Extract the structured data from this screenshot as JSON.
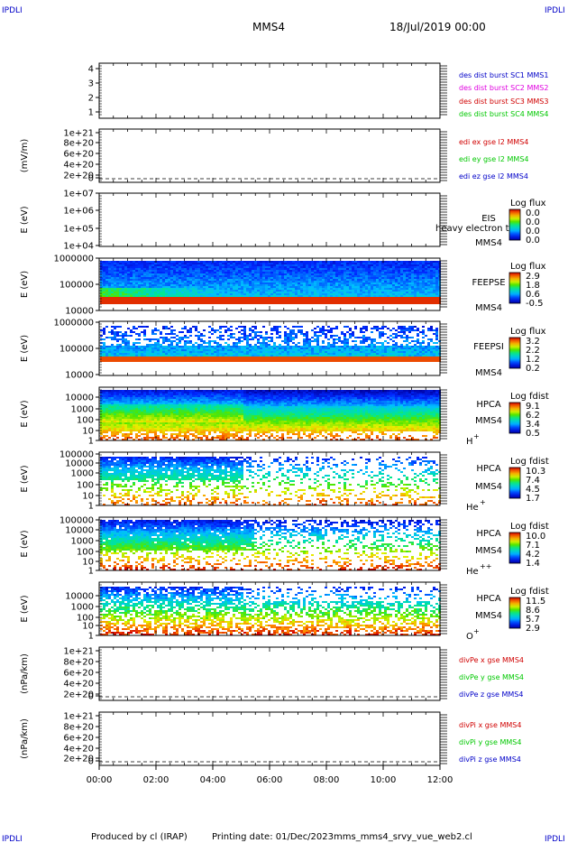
{
  "header": {
    "corner_label": "IPDLI",
    "spacecraft": "MMS4",
    "datetime": "18/Jul/2019 00:00"
  },
  "footer": {
    "produced_by": "Produced by cl (IRAP)",
    "printing_date": "Printing date: 01/Dec/2023",
    "script_name": "mms_mms4_srvy_vue_web2.cl"
  },
  "colors": {
    "blue": "#0000c8",
    "magenta": "#e000e0",
    "red": "#d00000",
    "green": "#00c800"
  },
  "chart_data": {
    "type": "heatmap",
    "x_ticks": [
      "00:00",
      "02:00",
      "04:00",
      "06:00",
      "08:00",
      "10:00",
      "12:00"
    ],
    "panels": [
      {
        "id": "des-dist",
        "kind": "line",
        "y_ticks": [
          "4",
          "3",
          "2",
          "1"
        ],
        "ylabel": "",
        "legend": [
          {
            "label": "des dist burst SC1 MMS1",
            "color": "#0000c8"
          },
          {
            "label": "des dist burst SC2 MMS2",
            "color": "#e000e0"
          },
          {
            "label": "des dist burst SC3 MMS3",
            "color": "#d00000"
          },
          {
            "label": "des dist burst SC4 MMS4",
            "color": "#00c800"
          }
        ]
      },
      {
        "id": "edi-e",
        "kind": "line",
        "y_ticks": [
          "1e+21",
          "8e+20",
          "6e+20",
          "4e+20",
          "2e+20",
          "0"
        ],
        "ylabel": "(mV/m)",
        "zero_line": true,
        "legend": [
          {
            "label": "edi ex gse l2 MMS4",
            "color": "#d00000"
          },
          {
            "label": "edi ey gse l2 MMS4",
            "color": "#00c800"
          },
          {
            "label": "edi ez gse l2 MMS4",
            "color": "#0000c8"
          }
        ]
      },
      {
        "id": "eis",
        "kind": "empty-spectrogram",
        "y_ticks": [
          "1e+07",
          "1e+06",
          "1e+05",
          "1e+04"
        ],
        "ylabel": "E (eV)",
        "instrument": "EIS",
        "sublabel": "heavy electron to",
        "sc": "MMS4",
        "colorbar": {
          "title": "Log flux",
          "ticks": [
            "0.0",
            "0.0",
            "0.0",
            "0.0"
          ]
        }
      },
      {
        "id": "feepse",
        "kind": "spectrogram",
        "y_ticks": [
          "1000000",
          "100000",
          "10000"
        ],
        "ylabel": "E (eV)",
        "instrument": "FEEPSE",
        "sc": "MMS4",
        "colorbar": {
          "title": "Log flux",
          "ticks": [
            "2.9",
            "1.8",
            "0.6",
            "-0.5"
          ]
        }
      },
      {
        "id": "feepsi",
        "kind": "spectrogram",
        "y_ticks": [
          "1000000",
          "100000",
          "10000"
        ],
        "ylabel": "E (eV)",
        "instrument": "FEEPSI",
        "sc": "MMS4",
        "colorbar": {
          "title": "Log flux",
          "ticks": [
            "3.2",
            "2.2",
            "1.2",
            "0.2"
          ]
        }
      },
      {
        "id": "hpca-h",
        "kind": "spectrogram",
        "y_ticks": [
          "10000",
          "1000",
          "100",
          "10",
          "1"
        ],
        "ylabel": "E (eV)",
        "instrument": "HPCA",
        "sc": "MMS4",
        "species": "H",
        "charge": "+",
        "colorbar": {
          "title": "Log fdist",
          "ticks": [
            "9.1",
            "6.2",
            "3.4",
            "0.5"
          ]
        }
      },
      {
        "id": "hpca-he1",
        "kind": "spectrogram",
        "y_ticks": [
          "100000",
          "10000",
          "1000",
          "100",
          "10",
          "1"
        ],
        "ylabel": "E (eV)",
        "instrument": "HPCA",
        "sc": "MMS4",
        "species": "He",
        "charge": "+",
        "colorbar": {
          "title": "Log fdist",
          "ticks": [
            "10.3",
            "7.4",
            "4.5",
            "1.7"
          ]
        }
      },
      {
        "id": "hpca-he2",
        "kind": "spectrogram",
        "y_ticks": [
          "100000",
          "10000",
          "1000",
          "100",
          "10",
          "1"
        ],
        "ylabel": "E (eV)",
        "instrument": "HPCA",
        "sc": "MMS4",
        "species": "He",
        "charge": "++",
        "colorbar": {
          "title": "Log fdist",
          "ticks": [
            "10.0",
            "7.1",
            "4.2",
            "1.4"
          ]
        }
      },
      {
        "id": "hpca-o",
        "kind": "spectrogram",
        "y_ticks": [
          "10000",
          "1000",
          "100",
          "10",
          "1"
        ],
        "ylabel": "E (eV)",
        "instrument": "HPCA",
        "sc": "MMS4",
        "species": "O",
        "charge": "+",
        "colorbar": {
          "title": "Log fdist",
          "ticks": [
            "11.5",
            "8.6",
            "5.7",
            "2.9"
          ]
        }
      },
      {
        "id": "divpe",
        "kind": "line",
        "y_ticks": [
          "1e+21",
          "8e+20",
          "6e+20",
          "4e+20",
          "2e+20",
          "0"
        ],
        "ylabel": "(nPa/km)",
        "zero_line": true,
        "legend": [
          {
            "label": "divPe x gse MMS4",
            "color": "#d00000"
          },
          {
            "label": "divPe y gse MMS4",
            "color": "#00c800"
          },
          {
            "label": "divPe z gse MMS4",
            "color": "#0000c8"
          }
        ]
      },
      {
        "id": "divpi",
        "kind": "line",
        "y_ticks": [
          "1e+21",
          "8e+20",
          "6e+20",
          "4e+20",
          "2e+20",
          "0"
        ],
        "ylabel": "(nPa/km)",
        "zero_line": true,
        "legend": [
          {
            "label": "divPi x gse MMS4",
            "color": "#d00000"
          },
          {
            "label": "divPi y gse MMS4",
            "color": "#00c800"
          },
          {
            "label": "divPi z gse MMS4",
            "color": "#0000c8"
          }
        ]
      }
    ]
  }
}
